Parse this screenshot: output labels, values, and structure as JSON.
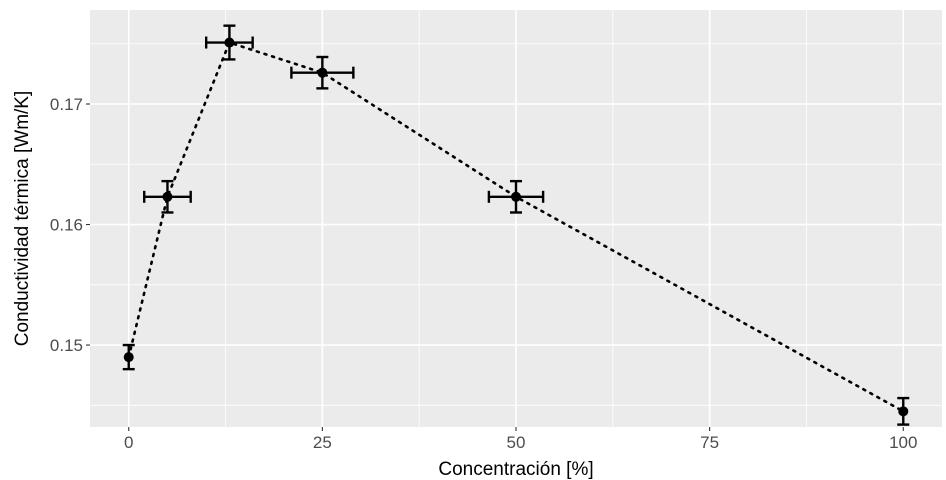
{
  "chart_data": {
    "type": "scatter",
    "xlabel": "Concentración [%]",
    "ylabel": "Conductividad térmica [Wm/K]",
    "xlim": [
      -5,
      105
    ],
    "ylim": [
      0.1432,
      0.1778
    ],
    "x_ticks": [
      0,
      25,
      50,
      75,
      100
    ],
    "x_tick_labels": [
      "0",
      "25",
      "50",
      "75",
      "100"
    ],
    "y_ticks": [
      0.15,
      0.16,
      0.17
    ],
    "y_tick_labels": [
      "0.15",
      "0.16",
      "0.17"
    ],
    "grid": true,
    "line_style": "dotted",
    "colors": {
      "panel": "#ebebeb",
      "grid": "#ffffff",
      "points": "#000000",
      "tick_text": "#4d4d4d"
    },
    "points": [
      {
        "x": 0,
        "y": 0.149,
        "y_err": 0.001,
        "x_err": 0
      },
      {
        "x": 5,
        "y": 0.1623,
        "y_err": 0.0013,
        "x_err": 3
      },
      {
        "x": 13,
        "y": 0.1751,
        "y_err": 0.0014,
        "x_err": 3
      },
      {
        "x": 25,
        "y": 0.1726,
        "y_err": 0.0013,
        "x_err": 4
      },
      {
        "x": 50,
        "y": 0.1623,
        "y_err": 0.0013,
        "x_err": 3.5
      },
      {
        "x": 100,
        "y": 0.1445,
        "y_err": 0.0011,
        "x_err": 0
      }
    ]
  }
}
